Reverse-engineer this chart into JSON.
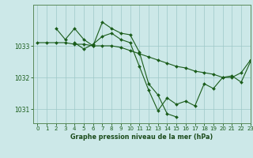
{
  "title": "Graphe pression niveau de la mer (hPa)",
  "background_color": "#cce8e8",
  "plot_bg_color": "#cce8e8",
  "line_color": "#1a5c1a",
  "grid_color": "#9dc8c8",
  "xlim": [
    -0.5,
    23
  ],
  "ylim": [
    1030.55,
    1034.3
  ],
  "yticks": [
    1031,
    1032,
    1033
  ],
  "xticks": [
    0,
    1,
    2,
    3,
    4,
    5,
    6,
    7,
    8,
    9,
    10,
    11,
    12,
    13,
    14,
    15,
    16,
    17,
    18,
    19,
    20,
    21,
    22,
    23
  ],
  "series": [
    {
      "x": [
        0,
        1,
        2,
        3,
        4,
        5,
        6,
        7,
        8,
        9,
        10,
        11,
        12,
        13,
        14,
        15,
        16,
        17,
        18,
        19,
        20,
        21,
        22,
        23
      ],
      "y": [
        1033.1,
        1033.1,
        1033.1,
        1033.1,
        1033.05,
        1033.05,
        1033.0,
        1033.0,
        1033.0,
        1032.95,
        1032.85,
        1032.75,
        1032.65,
        1032.55,
        1032.45,
        1032.35,
        1032.3,
        1032.2,
        1032.15,
        1032.1,
        1032.0,
        1032.0,
        1032.15,
        1032.55
      ]
    },
    {
      "x": [
        2,
        3,
        4,
        5,
        6,
        7,
        8,
        9,
        10,
        11,
        12,
        13,
        14,
        15
      ],
      "y": [
        1033.55,
        1033.2,
        1033.55,
        1033.2,
        1033.0,
        1033.75,
        1033.55,
        1033.4,
        1033.35,
        1032.8,
        1031.8,
        1031.45,
        1030.85,
        1030.75
      ]
    },
    {
      "x": [
        4,
        5,
        6,
        7,
        8,
        9,
        10,
        11,
        12,
        13,
        14,
        15,
        16,
        17,
        18,
        19,
        20,
        21,
        22,
        23
      ],
      "y": [
        1033.1,
        1032.9,
        1033.05,
        1033.3,
        1033.4,
        1033.2,
        1033.1,
        1032.35,
        1031.6,
        1030.95,
        1031.35,
        1031.15,
        1031.25,
        1031.1,
        1031.8,
        1031.65,
        1032.0,
        1032.05,
        1031.85,
        1032.5
      ]
    }
  ]
}
